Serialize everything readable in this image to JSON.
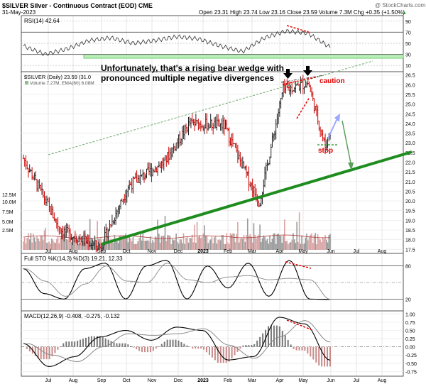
{
  "header": {
    "symbol_title": "$SILVER Silver - Continuous Contract (EOD) CME",
    "date": "31-May-2023",
    "quote": "Open 23.31 High 23.74 Low 23.16 Close 23.59 Volume 7.3M Chg +0.35 (+1.50%)",
    "quote_up_marker": "▲",
    "watermark": "@ StockCharts.com"
  },
  "rsi_panel": {
    "label": "RSI(14) 42.64",
    "value": 42.64,
    "y_ticks": [
      "90",
      "70",
      "50",
      "30",
      "10"
    ],
    "y_min": 0,
    "y_max": 100,
    "upper_line": 70,
    "lower_line": 30,
    "support_band": [
      23,
      30
    ]
  },
  "price_panel": {
    "legend_line1": "$SILVER (Daily) 23.59 (31.0",
    "legend_line2": "Volume 7.27M, EMA(60) 6.08M",
    "annotation": "Unfortunately, that's a rising bear wedge with pronounced multiple negative divergences",
    "caution_label": "caution",
    "stop_label": "stop",
    "y_ticks": [
      "26.5",
      "26.0",
      "25.5",
      "25.0",
      "24.5",
      "24.0",
      "23.5",
      "23.0",
      "22.5",
      "22.0",
      "21.5",
      "21.0",
      "20.5",
      "20.0",
      "19.5",
      "19.0",
      "18.5",
      "18.0",
      "17.5"
    ],
    "vol_ticks": [
      "12.5M",
      "10.0M",
      "7.5M",
      "5.0M",
      "2.5M"
    ],
    "y_min": 17.4,
    "y_max": 26.6
  },
  "sto_panel": {
    "label": "Full STO %K(14,3) %D(3) 19.21, 12.33",
    "y_ticks": [
      "80",
      "20"
    ],
    "y_min": 0,
    "y_max": 100
  },
  "macd_panel": {
    "label": "MACD(12,26,9) -0.408, -0.275, -0.132",
    "y_ticks": [
      "1.00",
      "0.75",
      "0.50",
      "0.25",
      "0.00",
      "-0.25",
      "-0.50",
      "-0.75"
    ],
    "y_min": -0.85,
    "y_max": 1.05
  },
  "x_axis": {
    "labels": [
      "Jul",
      "Aug",
      "Sep",
      "Oct",
      "Nov",
      "Dec",
      "2023",
      "Feb",
      "Mar",
      "Apr",
      "May",
      "Jun",
      "Jul",
      "Aug"
    ],
    "bold_label": "2023"
  },
  "colors": {
    "price_up": "#222222",
    "price_down": "#cc0000",
    "support_line": "#1e8c1e",
    "support_band": "#b8f0b8",
    "caution": "#e00000",
    "arrow_blue": "#9aa8ff",
    "arrow_green": "#5aa05a"
  },
  "chart_data": [
    {
      "type": "line",
      "name": "price",
      "key_levels": [
        {
          "date": "2022-06-01",
          "close": 22.2
        },
        {
          "date": "2022-07-15",
          "close": 18.5
        },
        {
          "date": "2022-08-31",
          "close": 17.6
        },
        {
          "date": "2022-10-04",
          "close": 20.8
        },
        {
          "date": "2022-11-15",
          "close": 22.0
        },
        {
          "date": "2022-12-15",
          "close": 24.0
        },
        {
          "date": "2023-01-25",
          "close": 23.9
        },
        {
          "date": "2023-03-08",
          "close": 19.9
        },
        {
          "date": "2023-04-05",
          "close": 25.7
        },
        {
          "date": "2023-05-05",
          "close": 26.1
        },
        {
          "date": "2023-05-25",
          "close": 22.8
        },
        {
          "date": "2023-05-31",
          "close": 23.59
        }
      ]
    },
    {
      "type": "line",
      "name": "rsi",
      "series": [
        {
          "name": "RSI(14)",
          "values": [
            45,
            30,
            40,
            55,
            60,
            50,
            55,
            62,
            58,
            45,
            35,
            60,
            72,
            68,
            42.64
          ]
        }
      ]
    },
    {
      "type": "line",
      "name": "sto",
      "series": [
        {
          "name": "%K",
          "values": [
            75,
            30,
            20,
            75,
            85,
            20,
            80,
            90,
            20,
            80,
            40,
            85,
            25,
            90,
            20,
            19.21
          ]
        }
      ]
    },
    {
      "type": "line",
      "name": "macd",
      "series": [
        {
          "name": "MACD",
          "values": [
            0.1,
            -0.6,
            -0.3,
            0.3,
            0.5,
            0.2,
            0.6,
            0.5,
            -0.4,
            -0.3,
            0.9,
            0.7,
            -0.408
          ]
        }
      ]
    }
  ]
}
